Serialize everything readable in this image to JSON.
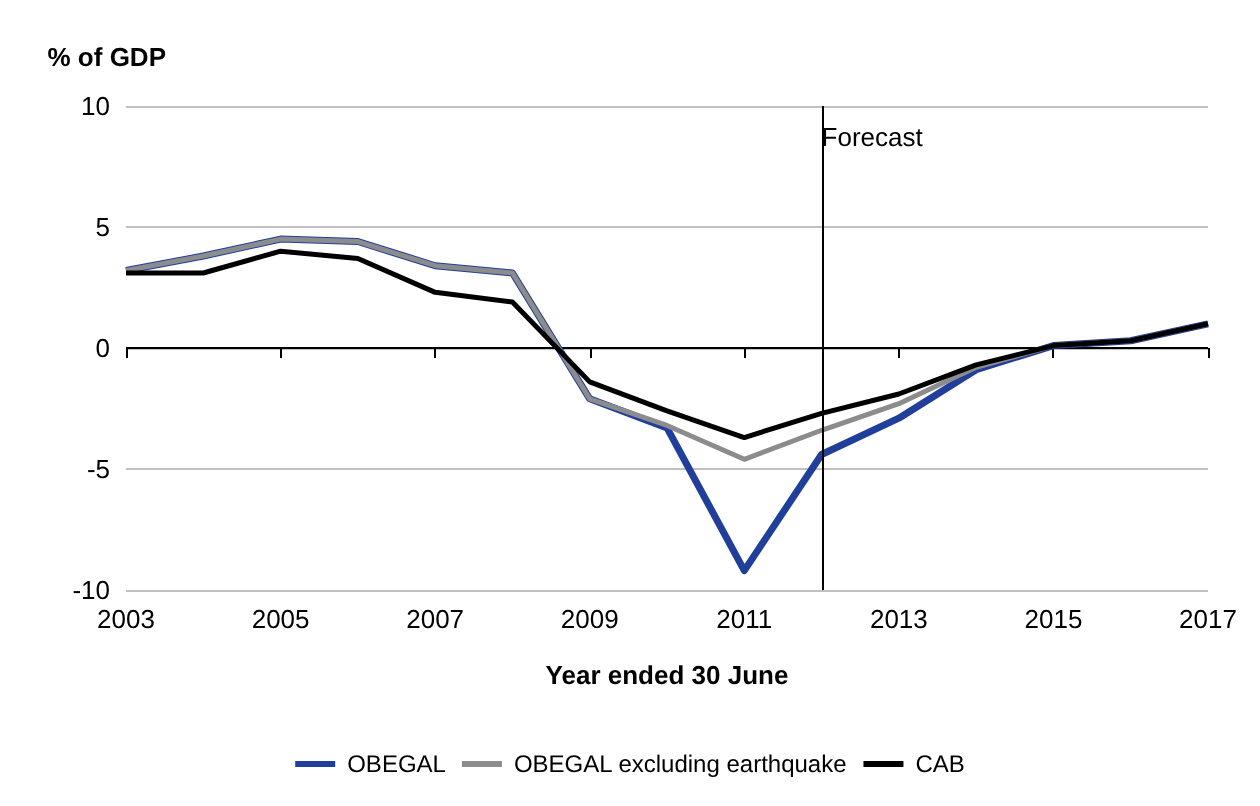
{
  "chart_data": {
    "type": "line",
    "ylabel": "% of GDP",
    "xlabel": "Year ended 30 June",
    "x": [
      2003,
      2004,
      2005,
      2006,
      2007,
      2008,
      2009,
      2010,
      2011,
      2012,
      2013,
      2014,
      2015,
      2016,
      2017
    ],
    "series": [
      {
        "name": "OBEGAL",
        "color": "#1f3f9a",
        "values": [
          3.2,
          3.8,
          4.5,
          4.4,
          3.4,
          3.1,
          -2.1,
          -3.3,
          -9.2,
          -4.4,
          -2.9,
          -0.9,
          0.1,
          0.3,
          1.0
        ]
      },
      {
        "name": "OBEGAL excluding earthquake",
        "color": "#8c8c8c",
        "values": [
          3.2,
          3.8,
          4.5,
          4.4,
          3.4,
          3.1,
          -2.1,
          -3.2,
          -4.6,
          -3.4,
          -2.3,
          -0.8,
          0.1,
          0.3,
          1.0
        ]
      },
      {
        "name": "CAB",
        "color": "#000000",
        "values": [
          3.1,
          3.1,
          4.0,
          3.7,
          2.3,
          1.9,
          -1.4,
          -2.6,
          -3.7,
          -2.7,
          -1.9,
          -0.7,
          0.1,
          0.3,
          1.0
        ]
      }
    ],
    "xlim": [
      2003,
      2017
    ],
    "xticks": [
      2003,
      2005,
      2007,
      2009,
      2011,
      2013,
      2015,
      2017
    ],
    "ylim": [
      -10,
      10
    ],
    "yticks": [
      -10,
      -5,
      0,
      5,
      10
    ],
    "ref_lines": [
      {
        "axis": "x",
        "value": 2012,
        "label": "Forecast",
        "color": "#000000"
      }
    ],
    "grid": "y",
    "legend": "bottom",
    "marker": "none",
    "line_style": "solid"
  }
}
